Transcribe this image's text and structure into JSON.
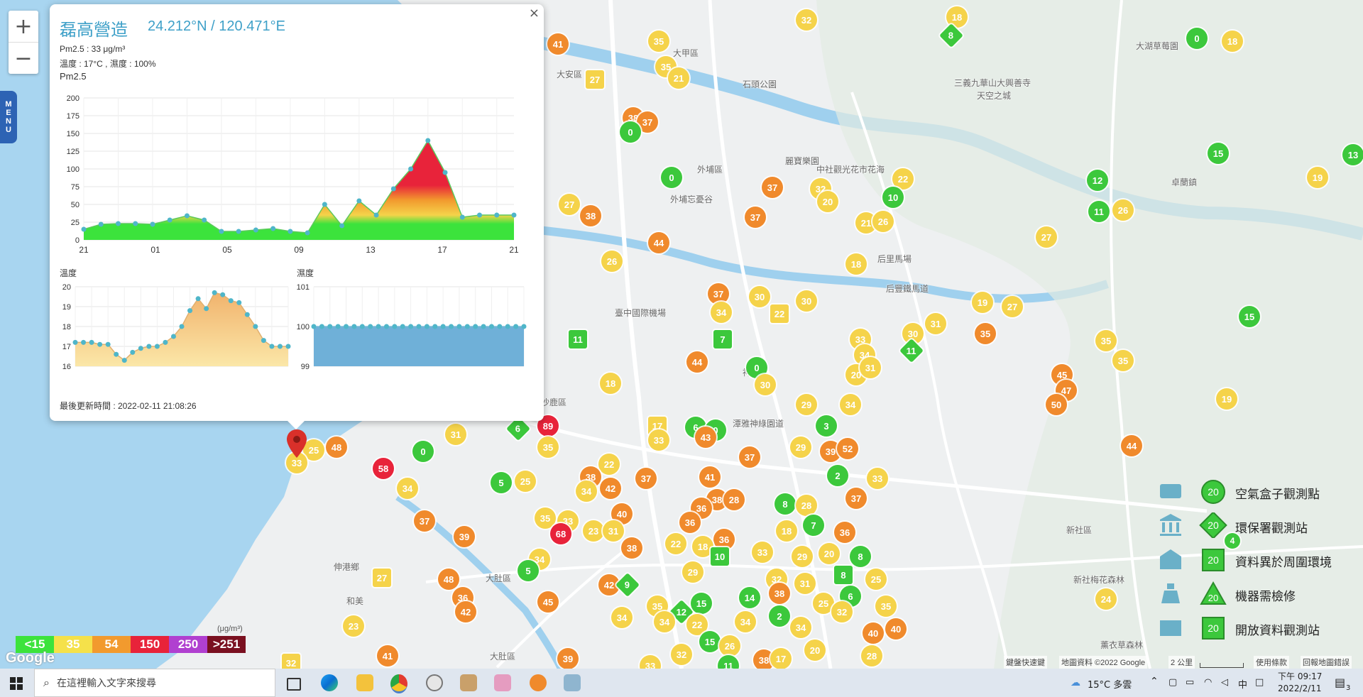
{
  "zoom": {
    "plus": "+",
    "minus": "−"
  },
  "menu_label": [
    "M",
    "E",
    "N",
    "U"
  ],
  "popup": {
    "close": "×",
    "station_name": "磊高營造",
    "coords": "24.212°N / 120.471°E",
    "pm25_line": "Pm2.5 : 33 μg/m³",
    "temp_humidity_line": "溫度 : 17°C , 濕度 : 100%",
    "chart1_title": "Pm2.5",
    "chart2_title": "溫度",
    "chart3_title": "濕度",
    "updated": "最後更新時間 : 2022-02-11 21:08:26"
  },
  "chart_data": [
    {
      "type": "area",
      "title": "Pm2.5",
      "x_tick_labels": [
        "21",
        "01",
        "05",
        "09",
        "13",
        "17",
        "21"
      ],
      "ylim": [
        0,
        200
      ],
      "y_ticks": [
        0,
        25,
        50,
        75,
        100,
        125,
        150,
        175,
        200
      ],
      "values": [
        15,
        22,
        23,
        23,
        22,
        28,
        34,
        28,
        12,
        12,
        14,
        16,
        12,
        10,
        50,
        20,
        55,
        35,
        72,
        100,
        140,
        95,
        32,
        35,
        35,
        35
      ],
      "grid": true
    },
    {
      "type": "area",
      "title": "溫度",
      "ylim": [
        16,
        20
      ],
      "y_ticks": [
        16,
        17,
        18,
        19,
        20
      ],
      "values": [
        17.2,
        17.2,
        17.2,
        17.1,
        17.1,
        16.6,
        16.3,
        16.7,
        16.9,
        17.0,
        17.0,
        17.2,
        17.5,
        18.0,
        18.8,
        19.4,
        18.9,
        19.7,
        19.6,
        19.3,
        19.2,
        18.6,
        18.0,
        17.3,
        17.0,
        17.0,
        17.0
      ],
      "grid": true
    },
    {
      "type": "area",
      "title": "濕度",
      "ylim": [
        99,
        101
      ],
      "y_ticks": [
        99,
        100,
        101
      ],
      "values": [
        100,
        100,
        100,
        100,
        100,
        100,
        100,
        100,
        100,
        100,
        100,
        100,
        100,
        100,
        100,
        100,
        100,
        100,
        100,
        100,
        100,
        100,
        100,
        100,
        100,
        100,
        100
      ],
      "grid": true
    }
  ],
  "map_labels": [
    {
      "text": "大甲區",
      "x": 948,
      "y": 66
    },
    {
      "text": "大安區",
      "x": 784,
      "y": 96
    },
    {
      "text": "石頭公園",
      "x": 1046,
      "y": 110
    },
    {
      "text": "外埔區",
      "x": 982,
      "y": 230
    },
    {
      "text": "中社觀光花市花海",
      "x": 1150,
      "y": 230
    },
    {
      "text": "麗寶樂園",
      "x": 1106,
      "y": 218
    },
    {
      "text": "后里馬場",
      "x": 1236,
      "y": 356
    },
    {
      "text": "后豐鐵馬道",
      "x": 1248,
      "y": 398
    },
    {
      "text": "臺中國際機場",
      "x": 866,
      "y": 432
    },
    {
      "text": "神岡區",
      "x": 1046,
      "y": 516
    },
    {
      "text": "潭雅神綠園道",
      "x": 1032,
      "y": 588
    },
    {
      "text": "沙鹿區",
      "x": 762,
      "y": 558
    },
    {
      "text": "大肚區",
      "x": 684,
      "y": 806
    },
    {
      "text": "伸港鄉",
      "x": 470,
      "y": 790
    },
    {
      "text": "和美",
      "x": 488,
      "y": 838
    },
    {
      "text": "大肚區",
      "x": 690,
      "y": 916
    },
    {
      "text": "卓蘭鎮",
      "x": 1650,
      "y": 248
    },
    {
      "text": "新社區",
      "x": 1502,
      "y": 738
    },
    {
      "text": "天空之城",
      "x": 1376,
      "y": 126
    },
    {
      "text": "三義九華山大興善寺",
      "x": 1344,
      "y": 108
    },
    {
      "text": "大湖草莓園",
      "x": 1600,
      "y": 56
    },
    {
      "text": "新社梅花森林",
      "x": 1512,
      "y": 808
    },
    {
      "text": "薰衣草森林",
      "x": 1550,
      "y": 900
    },
    {
      "text": "外埔忘憂谷",
      "x": 944,
      "y": 272
    }
  ],
  "markers": [
    {
      "v": "41",
      "x": 786,
      "y": 62,
      "c": "#f08a2c"
    },
    {
      "v": "35",
      "x": 928,
      "y": 58,
      "c": "#f5d34a"
    },
    {
      "v": "32",
      "x": 1136,
      "y": 28,
      "c": "#f5d34a"
    },
    {
      "v": "18",
      "x": 1348,
      "y": 24,
      "c": "#f5d34a"
    },
    {
      "v": "8",
      "x": 1340,
      "y": 50,
      "c": "#3cc83c",
      "s": "dm"
    },
    {
      "v": "0",
      "x": 1686,
      "y": 54,
      "c": "#3cc83c"
    },
    {
      "v": "18",
      "x": 1736,
      "y": 58,
      "c": "#f5d34a"
    },
    {
      "v": "35",
      "x": 938,
      "y": 94,
      "c": "#f5d34a"
    },
    {
      "v": "21",
      "x": 956,
      "y": 110,
      "c": "#f5d34a"
    },
    {
      "v": "27",
      "x": 838,
      "y": 112,
      "c": "#f5d34a",
      "s": "sq"
    },
    {
      "v": "38",
      "x": 892,
      "y": 166,
      "c": "#f08a2c"
    },
    {
      "v": "37",
      "x": 912,
      "y": 172,
      "c": "#f08a2c"
    },
    {
      "v": "0",
      "x": 888,
      "y": 186,
      "c": "#3cc83c"
    },
    {
      "v": "0",
      "x": 946,
      "y": 250,
      "c": "#3cc83c"
    },
    {
      "v": "37",
      "x": 1088,
      "y": 264,
      "c": "#f08a2c"
    },
    {
      "v": "32",
      "x": 1156,
      "y": 266,
      "c": "#f5d34a"
    },
    {
      "v": "20",
      "x": 1166,
      "y": 284,
      "c": "#f5d34a"
    },
    {
      "v": "22",
      "x": 1272,
      "y": 252,
      "c": "#f5d34a"
    },
    {
      "v": "10",
      "x": 1258,
      "y": 278,
      "c": "#3cc83c"
    },
    {
      "v": "21",
      "x": 1220,
      "y": 314,
      "c": "#f5d34a"
    },
    {
      "v": "26",
      "x": 1244,
      "y": 312,
      "c": "#f5d34a"
    },
    {
      "v": "37",
      "x": 1064,
      "y": 306,
      "c": "#f08a2c"
    },
    {
      "v": "27",
      "x": 802,
      "y": 288,
      "c": "#f5d34a"
    },
    {
      "v": "38",
      "x": 832,
      "y": 304,
      "c": "#f08a2c"
    },
    {
      "v": "44",
      "x": 928,
      "y": 342,
      "c": "#f08a2c"
    },
    {
      "v": "26",
      "x": 862,
      "y": 368,
      "c": "#f5d34a"
    },
    {
      "v": "18",
      "x": 1206,
      "y": 372,
      "c": "#f5d34a"
    },
    {
      "v": "27",
      "x": 1474,
      "y": 334,
      "c": "#f5d34a"
    },
    {
      "v": "15",
      "x": 1716,
      "y": 216,
      "c": "#3cc83c"
    },
    {
      "v": "13",
      "x": 1906,
      "y": 218,
      "c": "#3cc83c"
    },
    {
      "v": "12",
      "x": 1546,
      "y": 254,
      "c": "#3cc83c"
    },
    {
      "v": "19",
      "x": 1856,
      "y": 250,
      "c": "#f5d34a"
    },
    {
      "v": "11",
      "x": 1548,
      "y": 298,
      "c": "#3cc83c"
    },
    {
      "v": "26",
      "x": 1582,
      "y": 296,
      "c": "#f5d34a"
    },
    {
      "v": "37",
      "x": 1012,
      "y": 414,
      "c": "#f08a2c"
    },
    {
      "v": "34",
      "x": 1016,
      "y": 440,
      "c": "#f5d34a"
    },
    {
      "v": "30",
      "x": 1070,
      "y": 418,
      "c": "#f5d34a"
    },
    {
      "v": "22",
      "x": 1098,
      "y": 442,
      "c": "#f5d34a",
      "s": "sq"
    },
    {
      "v": "30",
      "x": 1136,
      "y": 424,
      "c": "#f5d34a"
    },
    {
      "v": "11",
      "x": 814,
      "y": 478,
      "c": "#3cc83c",
      "s": "sq"
    },
    {
      "v": "7",
      "x": 1018,
      "y": 478,
      "c": "#3cc83c",
      "s": "sq"
    },
    {
      "v": "44",
      "x": 982,
      "y": 510,
      "c": "#f08a2c"
    },
    {
      "v": "0",
      "x": 1066,
      "y": 518,
      "c": "#3cc83c"
    },
    {
      "v": "30",
      "x": 1078,
      "y": 542,
      "c": "#f5d34a"
    },
    {
      "v": "18",
      "x": 860,
      "y": 540,
      "c": "#f5d34a"
    },
    {
      "v": "33",
      "x": 1212,
      "y": 478,
      "c": "#f5d34a"
    },
    {
      "v": "34",
      "x": 1218,
      "y": 500,
      "c": "#f5d34a"
    },
    {
      "v": "20",
      "x": 1206,
      "y": 528,
      "c": "#f5d34a"
    },
    {
      "v": "31",
      "x": 1226,
      "y": 518,
      "c": "#f5d34a"
    },
    {
      "v": "30",
      "x": 1286,
      "y": 470,
      "c": "#f5d34a"
    },
    {
      "v": "31",
      "x": 1318,
      "y": 456,
      "c": "#f5d34a"
    },
    {
      "v": "11",
      "x": 1284,
      "y": 494,
      "c": "#3cc83c",
      "s": "dm"
    },
    {
      "v": "19",
      "x": 1384,
      "y": 426,
      "c": "#f5d34a"
    },
    {
      "v": "27",
      "x": 1426,
      "y": 432,
      "c": "#f5d34a"
    },
    {
      "v": "35",
      "x": 1388,
      "y": 470,
      "c": "#f08a2c"
    },
    {
      "v": "35",
      "x": 1558,
      "y": 480,
      "c": "#f5d34a"
    },
    {
      "v": "35",
      "x": 1582,
      "y": 508,
      "c": "#f5d34a"
    },
    {
      "v": "15",
      "x": 1760,
      "y": 446,
      "c": "#3cc83c"
    },
    {
      "v": "45",
      "x": 1496,
      "y": 528,
      "c": "#f08a2c"
    },
    {
      "v": "47",
      "x": 1502,
      "y": 550,
      "c": "#f08a2c"
    },
    {
      "v": "50",
      "x": 1488,
      "y": 570,
      "c": "#f08a2c"
    },
    {
      "v": "19",
      "x": 1728,
      "y": 562,
      "c": "#f5d34a"
    },
    {
      "v": "44",
      "x": 1594,
      "y": 628,
      "c": "#f08a2c"
    },
    {
      "v": "29",
      "x": 1136,
      "y": 570,
      "c": "#f5d34a"
    },
    {
      "v": "34",
      "x": 1198,
      "y": 570,
      "c": "#f5d34a"
    },
    {
      "v": "3",
      "x": 1164,
      "y": 600,
      "c": "#3cc83c"
    },
    {
      "v": "89",
      "x": 772,
      "y": 600,
      "c": "#e8233a"
    },
    {
      "v": "6",
      "x": 730,
      "y": 604,
      "c": "#3cc83c",
      "s": "dm"
    },
    {
      "v": "35",
      "x": 772,
      "y": 630,
      "c": "#f5d34a"
    },
    {
      "v": "17",
      "x": 926,
      "y": 600,
      "c": "#f5d34a",
      "s": "sq"
    },
    {
      "v": "33",
      "x": 928,
      "y": 620,
      "c": "#f5d34a"
    },
    {
      "v": "6",
      "x": 980,
      "y": 602,
      "c": "#3cc83c"
    },
    {
      "v": "0",
      "x": 1008,
      "y": 606,
      "c": "#3cc83c"
    },
    {
      "v": "43",
      "x": 994,
      "y": 616,
      "c": "#f08a2c"
    },
    {
      "v": "37",
      "x": 1056,
      "y": 644,
      "c": "#f08a2c"
    },
    {
      "v": "29",
      "x": 1128,
      "y": 630,
      "c": "#f5d34a"
    },
    {
      "v": "39",
      "x": 1170,
      "y": 636,
      "c": "#f08a2c"
    },
    {
      "v": "52",
      "x": 1194,
      "y": 632,
      "c": "#f08a2c"
    },
    {
      "v": "33",
      "x": 1236,
      "y": 674,
      "c": "#f5d34a"
    },
    {
      "v": "2",
      "x": 1180,
      "y": 670,
      "c": "#3cc83c"
    },
    {
      "v": "37",
      "x": 1206,
      "y": 702,
      "c": "#f08a2c"
    },
    {
      "v": "31",
      "x": 642,
      "y": 612,
      "c": "#f5d34a"
    },
    {
      "v": "0",
      "x": 596,
      "y": 636,
      "c": "#3cc83c"
    },
    {
      "v": "48",
      "x": 474,
      "y": 630,
      "c": "#f08a2c"
    },
    {
      "v": "25",
      "x": 442,
      "y": 634,
      "c": "#f5d34a"
    },
    {
      "v": "33",
      "x": 418,
      "y": 652,
      "c": "#f5d34a"
    },
    {
      "v": "58",
      "x": 540,
      "y": 660,
      "c": "#e8233a"
    },
    {
      "v": "34",
      "x": 574,
      "y": 688,
      "c": "#f5d34a"
    },
    {
      "v": "5",
      "x": 706,
      "y": 680,
      "c": "#3cc83c"
    },
    {
      "v": "25",
      "x": 740,
      "y": 678,
      "c": "#f5d34a"
    },
    {
      "v": "22",
      "x": 858,
      "y": 654,
      "c": "#f5d34a"
    },
    {
      "v": "38",
      "x": 832,
      "y": 672,
      "c": "#f08a2c"
    },
    {
      "v": "42",
      "x": 860,
      "y": 688,
      "c": "#f08a2c"
    },
    {
      "v": "34",
      "x": 826,
      "y": 692,
      "c": "#f5d34a"
    },
    {
      "v": "37",
      "x": 910,
      "y": 674,
      "c": "#f08a2c"
    },
    {
      "v": "41",
      "x": 1000,
      "y": 672,
      "c": "#f08a2c"
    },
    {
      "v": "38",
      "x": 1010,
      "y": 704,
      "c": "#f08a2c"
    },
    {
      "v": "36",
      "x": 988,
      "y": 716,
      "c": "#f08a2c"
    },
    {
      "v": "28",
      "x": 1034,
      "y": 704,
      "c": "#f08a2c"
    },
    {
      "v": "40",
      "x": 876,
      "y": 724,
      "c": "#f08a2c"
    },
    {
      "v": "37",
      "x": 598,
      "y": 734,
      "c": "#f08a2c"
    },
    {
      "v": "35",
      "x": 768,
      "y": 730,
      "c": "#f5d34a"
    },
    {
      "v": "33",
      "x": 800,
      "y": 734,
      "c": "#f5d34a"
    },
    {
      "v": "39",
      "x": 654,
      "y": 756,
      "c": "#f08a2c"
    },
    {
      "v": "68",
      "x": 790,
      "y": 752,
      "c": "#e8233a"
    },
    {
      "v": "23",
      "x": 836,
      "y": 748,
      "c": "#f5d34a"
    },
    {
      "v": "31",
      "x": 864,
      "y": 748,
      "c": "#f5d34a"
    },
    {
      "v": "38",
      "x": 890,
      "y": 772,
      "c": "#f08a2c"
    },
    {
      "v": "36",
      "x": 972,
      "y": 736,
      "c": "#f08a2c"
    },
    {
      "v": "36",
      "x": 1020,
      "y": 760,
      "c": "#f08a2c"
    },
    {
      "v": "22",
      "x": 952,
      "y": 766,
      "c": "#f5d34a"
    },
    {
      "v": "18",
      "x": 990,
      "y": 770,
      "c": "#f5d34a"
    },
    {
      "v": "10",
      "x": 1014,
      "y": 784,
      "c": "#3cc83c",
      "s": "sq"
    },
    {
      "v": "33",
      "x": 1074,
      "y": 778,
      "c": "#f5d34a"
    },
    {
      "v": "8",
      "x": 1106,
      "y": 710,
      "c": "#3cc83c"
    },
    {
      "v": "28",
      "x": 1136,
      "y": 712,
      "c": "#f5d34a"
    },
    {
      "v": "18",
      "x": 1108,
      "y": 748,
      "c": "#f5d34a"
    },
    {
      "v": "7",
      "x": 1146,
      "y": 740,
      "c": "#3cc83c"
    },
    {
      "v": "36",
      "x": 1190,
      "y": 750,
      "c": "#f08a2c"
    },
    {
      "v": "29",
      "x": 1130,
      "y": 784,
      "c": "#f5d34a"
    },
    {
      "v": "20",
      "x": 1168,
      "y": 780,
      "c": "#f5d34a"
    },
    {
      "v": "8",
      "x": 1212,
      "y": 784,
      "c": "#3cc83c"
    },
    {
      "v": "8",
      "x": 1188,
      "y": 810,
      "c": "#3cc83c",
      "s": "sq"
    },
    {
      "v": "25",
      "x": 1234,
      "y": 816,
      "c": "#f5d34a"
    },
    {
      "v": "34",
      "x": 760,
      "y": 788,
      "c": "#f5d34a"
    },
    {
      "v": "5",
      "x": 744,
      "y": 804,
      "c": "#3cc83c"
    },
    {
      "v": "48",
      "x": 632,
      "y": 816,
      "c": "#f08a2c"
    },
    {
      "v": "27",
      "x": 538,
      "y": 814,
      "c": "#f5d34a",
      "s": "sq"
    },
    {
      "v": "42",
      "x": 858,
      "y": 824,
      "c": "#f08a2c"
    },
    {
      "v": "9",
      "x": 884,
      "y": 824,
      "c": "#3cc83c",
      "s": "dm"
    },
    {
      "v": "29",
      "x": 976,
      "y": 806,
      "c": "#f5d34a"
    },
    {
      "v": "32",
      "x": 1094,
      "y": 816,
      "c": "#f5d34a"
    },
    {
      "v": "31",
      "x": 1134,
      "y": 822,
      "c": "#f5d34a"
    },
    {
      "v": "6",
      "x": 1198,
      "y": 840,
      "c": "#3cc83c"
    },
    {
      "v": "38",
      "x": 1098,
      "y": 836,
      "c": "#f08a2c"
    },
    {
      "v": "14",
      "x": 1056,
      "y": 842,
      "c": "#3cc83c"
    },
    {
      "v": "25",
      "x": 1160,
      "y": 850,
      "c": "#f5d34a"
    },
    {
      "v": "35",
      "x": 1248,
      "y": 854,
      "c": "#f5d34a"
    },
    {
      "v": "36",
      "x": 652,
      "y": 842,
      "c": "#f08a2c"
    },
    {
      "v": "42",
      "x": 656,
      "y": 862,
      "c": "#f08a2c"
    },
    {
      "v": "45",
      "x": 772,
      "y": 848,
      "c": "#f08a2c"
    },
    {
      "v": "35",
      "x": 926,
      "y": 854,
      "c": "#f5d34a"
    },
    {
      "v": "12",
      "x": 960,
      "y": 862,
      "c": "#3cc83c",
      "s": "dm"
    },
    {
      "v": "15",
      "x": 988,
      "y": 850,
      "c": "#3cc83c"
    },
    {
      "v": "34",
      "x": 876,
      "y": 870,
      "c": "#f5d34a"
    },
    {
      "v": "34",
      "x": 936,
      "y": 876,
      "c": "#f5d34a"
    },
    {
      "v": "22",
      "x": 982,
      "y": 880,
      "c": "#f5d34a"
    },
    {
      "v": "34",
      "x": 1050,
      "y": 876,
      "c": "#f5d34a"
    },
    {
      "v": "2",
      "x": 1098,
      "y": 868,
      "c": "#3cc83c"
    },
    {
      "v": "34",
      "x": 1128,
      "y": 884,
      "c": "#f5d34a"
    },
    {
      "v": "32",
      "x": 1186,
      "y": 862,
      "c": "#f5d34a"
    },
    {
      "v": "23",
      "x": 498,
      "y": 882,
      "c": "#f5d34a"
    },
    {
      "v": "40",
      "x": 1230,
      "y": 892,
      "c": "#f08a2c"
    },
    {
      "v": "40",
      "x": 1262,
      "y": 886,
      "c": "#f08a2c"
    },
    {
      "v": "24",
      "x": 1558,
      "y": 844,
      "c": "#f5d34a"
    },
    {
      "v": "41",
      "x": 546,
      "y": 924,
      "c": "#f08a2c"
    },
    {
      "v": "32",
      "x": 410,
      "y": 934,
      "c": "#f5d34a",
      "s": "sq"
    },
    {
      "v": "39",
      "x": 800,
      "y": 928,
      "c": "#f08a2c"
    },
    {
      "v": "32",
      "x": 960,
      "y": 922,
      "c": "#f5d34a"
    },
    {
      "v": "15",
      "x": 1000,
      "y": 904,
      "c": "#3cc83c"
    },
    {
      "v": "26",
      "x": 1028,
      "y": 910,
      "c": "#f5d34a"
    },
    {
      "v": "38",
      "x": 1076,
      "y": 930,
      "c": "#f08a2c"
    },
    {
      "v": "17",
      "x": 1100,
      "y": 928,
      "c": "#f5d34a"
    },
    {
      "v": "20",
      "x": 1148,
      "y": 916,
      "c": "#f5d34a"
    },
    {
      "v": "28",
      "x": 1228,
      "y": 924,
      "c": "#f5d34a"
    },
    {
      "v": "11",
      "x": 1026,
      "y": 938,
      "c": "#3cc83c"
    },
    {
      "v": "33",
      "x": 916,
      "y": 938,
      "c": "#f5d34a"
    }
  ],
  "legend": [
    {
      "label": "空氣盒子觀測點",
      "value": "20",
      "shape": "circle"
    },
    {
      "label": "環保署觀測站",
      "value": "20",
      "shape": "diamond"
    },
    {
      "label": "資料異於周圍環境",
      "value": "20",
      "shape": "square"
    },
    {
      "label": "機器需檢修",
      "value": "20",
      "shape": "triangle"
    },
    {
      "label": "開放資料觀測站",
      "value": "20",
      "shape": "square"
    }
  ],
  "legend_extra_marker": "4",
  "aqi_scale": [
    {
      "label": "<15",
      "color": "#3ce33c"
    },
    {
      "label": "35",
      "color": "#f5e14a"
    },
    {
      "label": "54",
      "color": "#f29a2e"
    },
    {
      "label": "150",
      "color": "#e8233a"
    },
    {
      "label": "250",
      "color": "#b040d0"
    },
    {
      "label": ">251",
      "color": "#7a1020"
    }
  ],
  "aqi_unit": "(μg/m³)",
  "google_logo": "Google",
  "attribution": {
    "shortcuts": "鍵盤快速鍵",
    "map_data": "地圖資料 ©2022 Google",
    "scale": "2 公里",
    "terms": "使用條款",
    "report": "回報地圖錯誤"
  },
  "taskbar": {
    "search_placeholder": "在這裡輸入文字來搜尋",
    "weather": "15°C 多雲",
    "ime": "中",
    "time": "下午 09:17",
    "date": "2022/2/11",
    "notifications": "3"
  }
}
